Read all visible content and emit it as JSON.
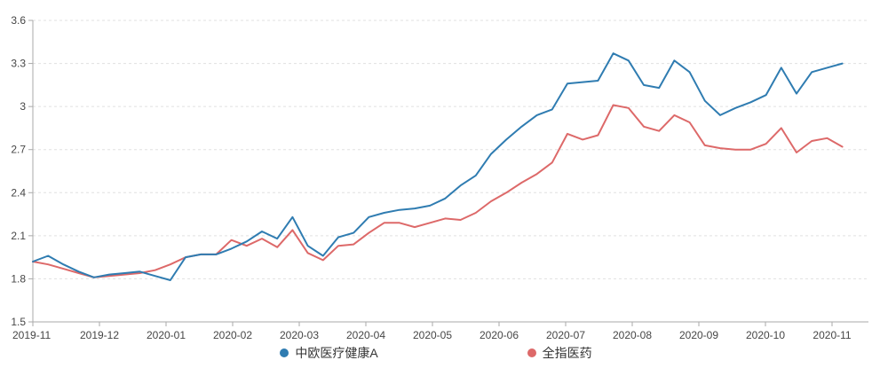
{
  "chart_data": {
    "type": "line",
    "title": "",
    "grid": true,
    "grid_style": "dashed",
    "legend_position": "bottom",
    "background_color": "#ffffff",
    "axis_line_color": "#aaaaaa",
    "grid_line_color": "#e0e0e0",
    "tick_label_color": "#464646",
    "y_axis": {
      "min": 1.5,
      "max": 3.6,
      "tick_labels": [
        "1.5",
        "1.8",
        "2.1",
        "2.4",
        "2.7",
        "3",
        "3.3",
        "3.6"
      ],
      "tick_values": [
        1.5,
        1.8,
        2.1,
        2.4,
        2.7,
        3.0,
        3.3,
        3.6
      ]
    },
    "x_axis": {
      "tick_labels": [
        "2019-11",
        "2019-12",
        "2020-01",
        "2020-02",
        "2020-03",
        "2020-04",
        "2020-05",
        "2020-06",
        "2020-07",
        "2020-08",
        "2020-09",
        "2020-10",
        "2020-11"
      ]
    },
    "sampling": "weekly",
    "series": [
      {
        "name": "中欧医疗健康A",
        "color": "#2f7cb1",
        "values": [
          1.92,
          1.96,
          1.9,
          1.85,
          1.81,
          1.83,
          1.84,
          1.85,
          1.82,
          1.79,
          1.95,
          1.97,
          1.97,
          2.01,
          2.06,
          2.13,
          2.08,
          2.23,
          2.03,
          1.96,
          2.09,
          2.12,
          2.23,
          2.26,
          2.28,
          2.29,
          2.31,
          2.36,
          2.45,
          2.52,
          2.67,
          2.77,
          2.86,
          2.94,
          2.98,
          3.16,
          3.17,
          3.18,
          3.37,
          3.32,
          3.15,
          3.13,
          3.32,
          3.24,
          3.04,
          2.94,
          2.99,
          3.03,
          3.08,
          3.27,
          3.09,
          3.24,
          3.27,
          3.3
        ]
      },
      {
        "name": "全指医药",
        "color": "#dd6969",
        "values": [
          1.92,
          1.9,
          1.87,
          1.84,
          1.81,
          1.82,
          1.83,
          1.84,
          1.86,
          1.9,
          1.95,
          1.97,
          1.97,
          2.07,
          2.03,
          2.08,
          2.02,
          2.14,
          1.98,
          1.93,
          2.03,
          2.04,
          2.12,
          2.19,
          2.19,
          2.16,
          2.19,
          2.22,
          2.21,
          2.26,
          2.34,
          2.4,
          2.47,
          2.53,
          2.61,
          2.81,
          2.77,
          2.8,
          3.01,
          2.99,
          2.86,
          2.83,
          2.94,
          2.89,
          2.73,
          2.71,
          2.7,
          2.7,
          2.74,
          2.85,
          2.68,
          2.76,
          2.78,
          2.72
        ]
      }
    ]
  }
}
